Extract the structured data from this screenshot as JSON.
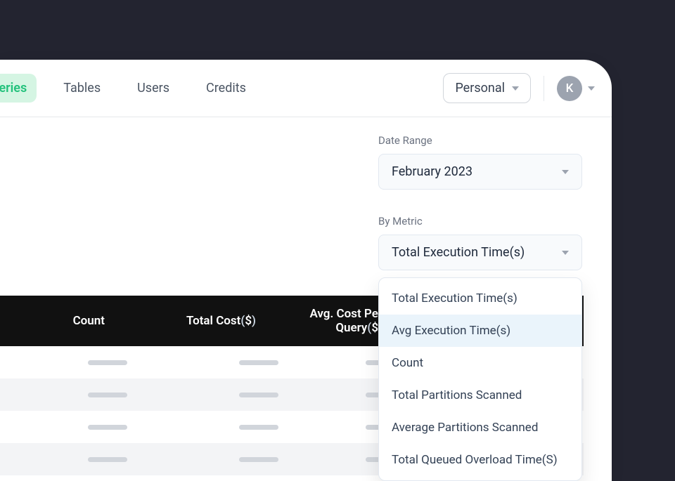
{
  "colors": {
    "page_bg": "#232430",
    "panel_bg": "#ffffff",
    "accent": "#22c17b",
    "accent_bg": "#d5f5e3",
    "border": "#e5e7eb",
    "text": "#1e293b",
    "muted": "#6b7280",
    "select_bg": "#f8fafc",
    "table_header_bg": "#111111",
    "skeleton": "#d1d5db",
    "option_highlight": "#eaf4fb"
  },
  "header": {
    "tabs": [
      {
        "label": "Queries",
        "active": true
      },
      {
        "label": "Tables",
        "active": false
      },
      {
        "label": "Users",
        "active": false
      },
      {
        "label": "Credits",
        "active": false
      }
    ],
    "account_label": "Personal",
    "avatar_initial": "K"
  },
  "filters": {
    "date_range": {
      "label": "Date Range",
      "value": "February 2023"
    },
    "by_metric": {
      "label": "By Metric",
      "value": "Total Execution Time(s)",
      "options": [
        "Total Execution Time(s)",
        "Avg Execution Time(s)",
        "Count",
        "Total Partitions Scanned",
        "Average Partitions Scanned",
        "Total Queued Overload Time(S)"
      ],
      "highlighted_index": 1
    }
  },
  "table": {
    "columns": [
      {
        "label": "Count"
      },
      {
        "label": "Total Cost",
        "currency": "$"
      },
      {
        "label": "Avg. Cost Per Query",
        "currency": "$"
      }
    ],
    "row_count": 4
  }
}
